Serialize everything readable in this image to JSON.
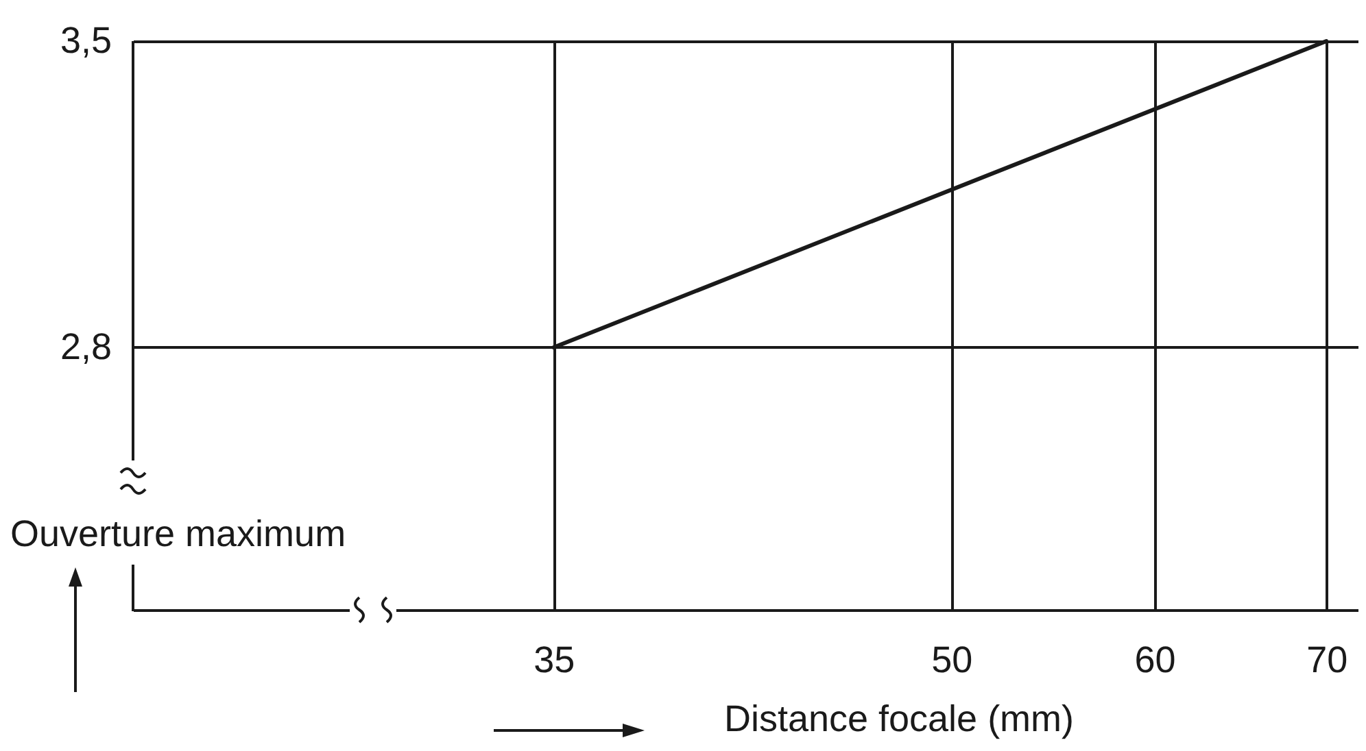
{
  "chart_data": {
    "type": "line",
    "xlabel": "Distance focale (mm)",
    "ylabel": "Ouverture maximum",
    "x": [
      35,
      70
    ],
    "series": [
      {
        "color": "#1a1a1a",
        "values": [
          2.8,
          3.5
        ]
      }
    ],
    "log": "x",
    "xlim": [
      24,
      72
    ],
    "xticks": [
      35,
      50,
      60,
      70
    ],
    "ylim": [
      2.2,
      3.5
    ],
    "yticks": [
      {
        "value": 2.8,
        "label": "2,8"
      },
      {
        "value": 3.5,
        "label": "3,5"
      }
    ],
    "grid": true,
    "marker": "none",
    "line_style": "solid"
  }
}
